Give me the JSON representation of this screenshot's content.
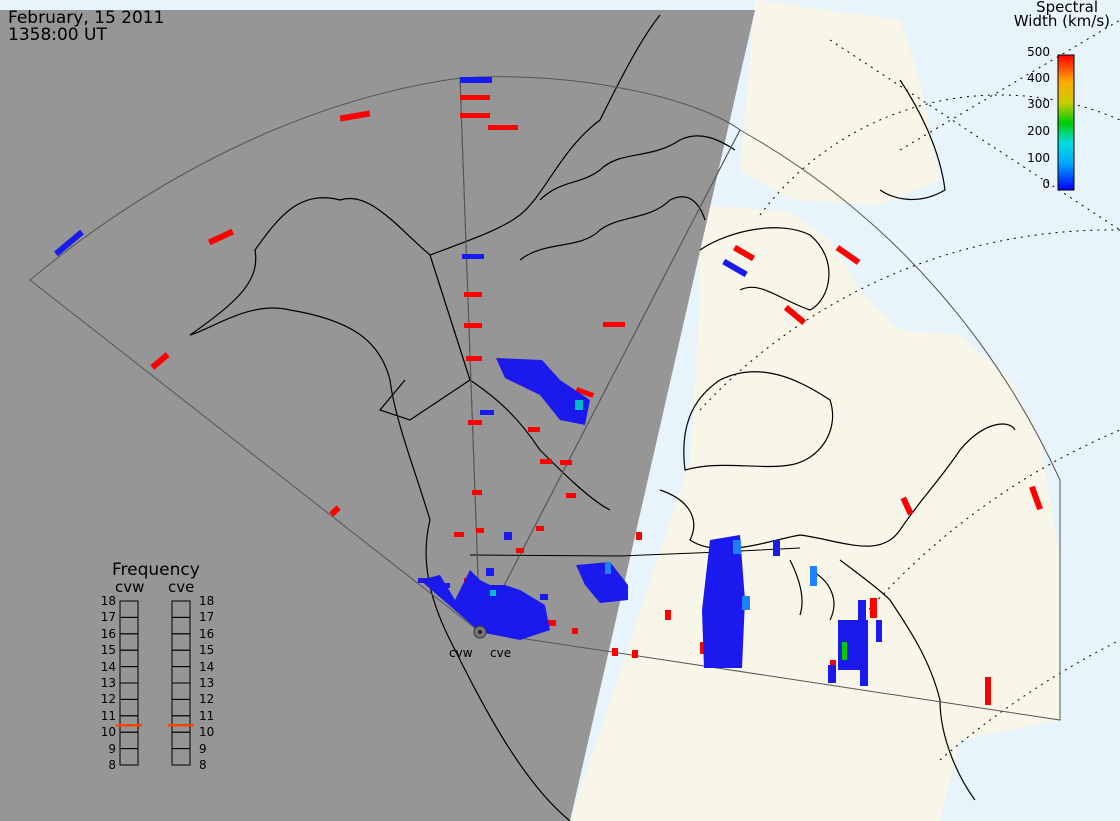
{
  "header": {
    "date": "February, 15 2011",
    "time": "1358:00 UT"
  },
  "legend": {
    "title_line1": "Spectral",
    "title_line2": "Width (km/s)",
    "ticks": [
      "500",
      "400",
      "300",
      "200",
      "100",
      "0"
    ],
    "colors": [
      "#ff0000",
      "#ff8800",
      "#ffee00",
      "#00cc00",
      "#00dddd",
      "#0000ff"
    ]
  },
  "frequency": {
    "title": "Frequency",
    "columns": [
      "cvw",
      "cve"
    ],
    "scale": [
      "18",
      "17",
      "16",
      "15",
      "14",
      "13",
      "12",
      "11",
      "10",
      "9",
      "8"
    ],
    "cvw_mhz": 10.8,
    "cve_mhz": 10.8
  },
  "radars": {
    "west": "cvw",
    "east": "cve"
  },
  "colors": {
    "night": "#969696",
    "day_land": "#f8f6e8",
    "day_ocean": "#e8f4fb",
    "scatter_red": "#ff0000",
    "scatter_blue": "#1a1aee",
    "freq_marker": "#ff4400"
  }
}
